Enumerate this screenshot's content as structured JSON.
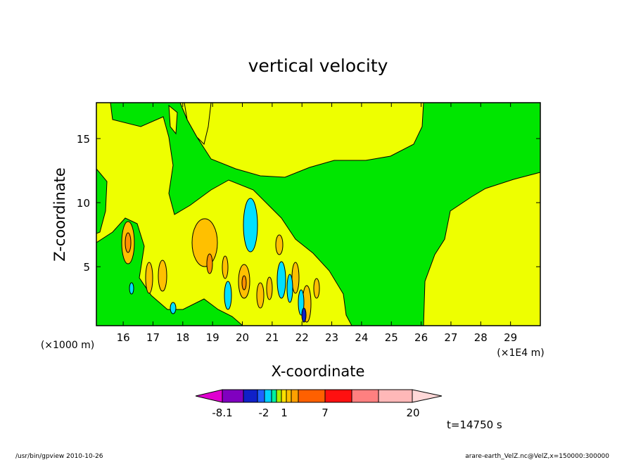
{
  "chart_data": {
    "type": "heatmap",
    "title": "vertical velocity",
    "xlabel": "X-coordinate",
    "ylabel": "Z-coordinate",
    "xunit": "(×1E4 m)",
    "yunit": "(×1000 m)",
    "xlim": [
      15.1,
      30
    ],
    "ylim": [
      0.4,
      17.8
    ],
    "xticks": [
      "16",
      "17",
      "18",
      "19",
      "20",
      "21",
      "22",
      "23",
      "24",
      "25",
      "26",
      "27",
      "28",
      "29"
    ],
    "yticks": [
      "5",
      "10",
      "15"
    ],
    "colorbar": {
      "colors": [
        "#e000d0",
        "#8000c0",
        "#1020c8",
        "#2060ff",
        "#00d0ff",
        "#00f0a0",
        "#aaf000",
        "#ffe000",
        "#ffc000",
        "#ffa000",
        "#ff6000",
        "#ff1010",
        "#ff8080",
        "#ffb8b8",
        "#ffd8d8"
      ],
      "labels": [
        "-8.1",
        "-2",
        "1",
        "7",
        "20"
      ]
    },
    "fill_colors": {
      "background": "#eeff00",
      "low": "#00e600",
      "mid_up": "#ffc000",
      "strong_up": "#ff9000",
      "down": "#00e0ff",
      "strong_down": "#1020c8"
    },
    "time_label": "t=14750 s"
  },
  "footer": {
    "left": "/usr/bin/gpview   2010-10-26",
    "right": "arare-earth_VelZ.nc@VelZ,x=150000:300000"
  }
}
